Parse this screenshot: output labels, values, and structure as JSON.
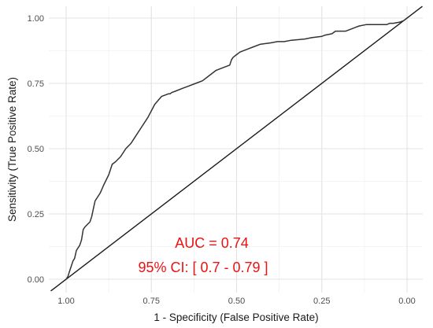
{
  "chart_data": {
    "type": "line",
    "xlabel": "1 - Specificity (False Positive Rate)",
    "ylabel": "Sensitivity (True Positive Rate)",
    "xlim": [
      1.0,
      0.0
    ],
    "ylim": [
      0.0,
      1.0
    ],
    "x_reversed": true,
    "x_ticks": [
      "1.00",
      "0.75",
      "0.50",
      "0.25",
      "0.00"
    ],
    "y_ticks": [
      "0.00",
      "0.25",
      "0.50",
      "0.75",
      "1.00"
    ],
    "grid": true,
    "series": [
      {
        "style": "step-line",
        "color": "#333333",
        "x": [
          1.0,
          0.995,
          0.99,
          0.985,
          0.98,
          0.975,
          0.97,
          0.96,
          0.955,
          0.95,
          0.945,
          0.93,
          0.925,
          0.92,
          0.915,
          0.9,
          0.89,
          0.875,
          0.87,
          0.865,
          0.855,
          0.84,
          0.825,
          0.81,
          0.8,
          0.78,
          0.76,
          0.74,
          0.72,
          0.7,
          0.695,
          0.69,
          0.68,
          0.66,
          0.64,
          0.62,
          0.6,
          0.58,
          0.56,
          0.54,
          0.52,
          0.515,
          0.51,
          0.5,
          0.49,
          0.47,
          0.45,
          0.43,
          0.4,
          0.38,
          0.36,
          0.34,
          0.3,
          0.28,
          0.25,
          0.24,
          0.22,
          0.21,
          0.18,
          0.17,
          0.16,
          0.15,
          0.14,
          0.12,
          0.1,
          0.08,
          0.06,
          0.05,
          0.04,
          0.02,
          0.01,
          0.0
        ],
        "y": [
          0.0,
          0.01,
          0.03,
          0.05,
          0.07,
          0.08,
          0.11,
          0.13,
          0.15,
          0.19,
          0.2,
          0.22,
          0.24,
          0.27,
          0.3,
          0.33,
          0.36,
          0.4,
          0.42,
          0.44,
          0.45,
          0.47,
          0.5,
          0.52,
          0.54,
          0.58,
          0.62,
          0.67,
          0.7,
          0.71,
          0.71,
          0.715,
          0.72,
          0.73,
          0.74,
          0.75,
          0.76,
          0.78,
          0.8,
          0.81,
          0.82,
          0.84,
          0.85,
          0.86,
          0.87,
          0.88,
          0.89,
          0.9,
          0.905,
          0.91,
          0.91,
          0.915,
          0.92,
          0.925,
          0.93,
          0.935,
          0.94,
          0.95,
          0.95,
          0.955,
          0.96,
          0.965,
          0.97,
          0.975,
          0.975,
          0.975,
          0.975,
          0.98,
          0.98,
          0.985,
          0.99,
          1.0
        ]
      },
      {
        "style": "reference-diagonal",
        "color": "#1a1a1a",
        "x": [
          1.0,
          0.0
        ],
        "y": [
          0.0,
          1.0
        ]
      }
    ],
    "annotations": [
      {
        "text": "AUC = 0.74",
        "color": "#ee1111"
      },
      {
        "text": "95% CI: [ 0.7 - 0.79 ]",
        "color": "#ee1111"
      }
    ]
  }
}
